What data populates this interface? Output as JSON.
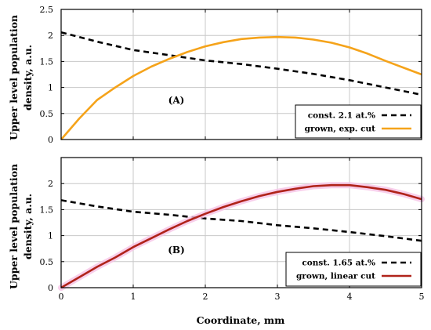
{
  "chart_data": [
    {
      "type": "line",
      "panel_label": "(A)",
      "ylabel_lines": [
        "Upper level population",
        "density, a.u."
      ],
      "xlim": [
        0,
        5
      ],
      "ylim": [
        0,
        2.5
      ],
      "xticks": [
        "0",
        "1",
        "2",
        "3",
        "4",
        "5"
      ],
      "yticks": [
        "0",
        "0.5",
        "1",
        "1.5",
        "2",
        "2.5"
      ],
      "grid": true,
      "legend_position": "bottom-right",
      "series": [
        {
          "name": "const. 2.1 at.%",
          "color": "#000000",
          "style": "dashed",
          "x": [
            0,
            0.5,
            1,
            1.5,
            2,
            2.5,
            3,
            3.5,
            4,
            4.5,
            5
          ],
          "y": [
            2.06,
            1.88,
            1.72,
            1.62,
            1.52,
            1.45,
            1.36,
            1.26,
            1.14,
            1.0,
            0.86
          ]
        },
        {
          "name": "grown, exp. cut",
          "color": "#f5a31a",
          "style": "solid",
          "x": [
            0,
            0.25,
            0.5,
            0.75,
            1,
            1.25,
            1.5,
            1.75,
            2,
            2.25,
            2.5,
            2.75,
            3,
            3.25,
            3.5,
            3.75,
            4,
            4.25,
            4.5,
            4.75,
            5
          ],
          "y": [
            0.0,
            0.4,
            0.76,
            1.0,
            1.22,
            1.4,
            1.55,
            1.68,
            1.79,
            1.87,
            1.93,
            1.96,
            1.97,
            1.96,
            1.92,
            1.86,
            1.77,
            1.65,
            1.51,
            1.38,
            1.25
          ]
        }
      ]
    },
    {
      "type": "line",
      "panel_label": "(B)",
      "ylabel_lines": [
        "Upper level population",
        "density, a.u."
      ],
      "xlabel": "Coordinate, mm",
      "xlim": [
        0,
        5
      ],
      "ylim": [
        0,
        2.5
      ],
      "xticks": [
        "0",
        "1",
        "2",
        "3",
        "4",
        "5"
      ],
      "yticks": [
        "0",
        "0.5",
        "1",
        "1.5",
        "2"
      ],
      "grid": true,
      "legend_position": "bottom-right",
      "series": [
        {
          "name": "const. 1.65 at.%",
          "color": "#000000",
          "style": "dashed",
          "x": [
            0,
            0.5,
            1,
            1.5,
            2,
            2.5,
            3,
            3.5,
            4,
            4.5,
            5
          ],
          "y": [
            1.68,
            1.56,
            1.46,
            1.4,
            1.33,
            1.28,
            1.2,
            1.14,
            1.07,
            0.99,
            0.9
          ]
        },
        {
          "name": "grown, linear cut",
          "color": "#b0231a",
          "style": "solid",
          "x": [
            0,
            0.25,
            0.5,
            0.75,
            1,
            1.25,
            1.5,
            1.75,
            2,
            2.25,
            2.5,
            2.75,
            3,
            3.25,
            3.5,
            3.75,
            4,
            4.25,
            4.5,
            4.75,
            5
          ],
          "y": [
            0.0,
            0.2,
            0.4,
            0.58,
            0.78,
            0.95,
            1.12,
            1.28,
            1.42,
            1.55,
            1.66,
            1.76,
            1.84,
            1.9,
            1.95,
            1.97,
            1.97,
            1.93,
            1.88,
            1.8,
            1.7
          ]
        }
      ]
    }
  ]
}
